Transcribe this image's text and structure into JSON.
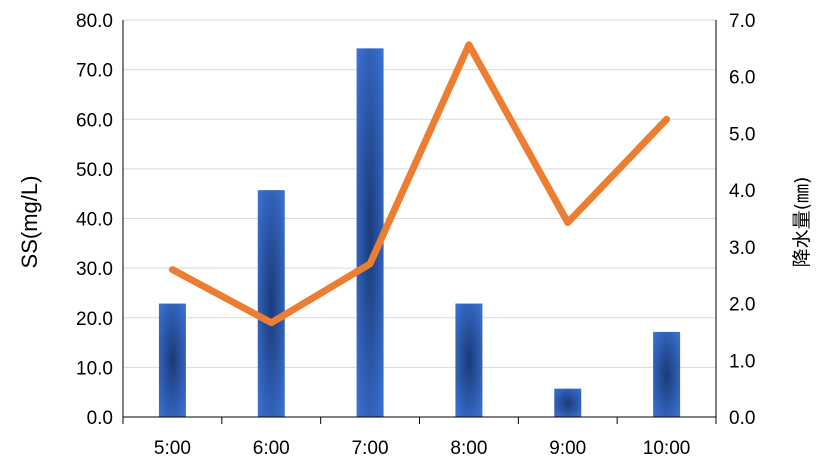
{
  "chart_data": {
    "type": "bar+line",
    "categories": [
      "5:00",
      "6:00",
      "7:00",
      "8:00",
      "9:00",
      "10:00"
    ],
    "series": [
      {
        "type": "bar",
        "axis": "right",
        "values": [
          2.0,
          4.0,
          6.5,
          2.0,
          0.5,
          1.5
        ],
        "color": "#3A6FD0"
      },
      {
        "type": "line",
        "axis": "left",
        "values": [
          29.7,
          19.0,
          30.9,
          75.0,
          39.2,
          60.0
        ],
        "color": "#ED7D31"
      }
    ],
    "ylabel": "SS(mg/L)",
    "ylabel_right": "降水量(㎜)",
    "ylim": [
      0,
      80
    ],
    "ylim_right": [
      0,
      7
    ],
    "yticks": [
      "0.0",
      "10.0",
      "20.0",
      "30.0",
      "40.0",
      "50.0",
      "60.0",
      "70.0",
      "80.0"
    ],
    "yticks_right": [
      "0.0",
      "1.0",
      "2.0",
      "3.0",
      "4.0",
      "5.0",
      "6.0",
      "7.0"
    ],
    "grid": true,
    "legend": "none"
  }
}
